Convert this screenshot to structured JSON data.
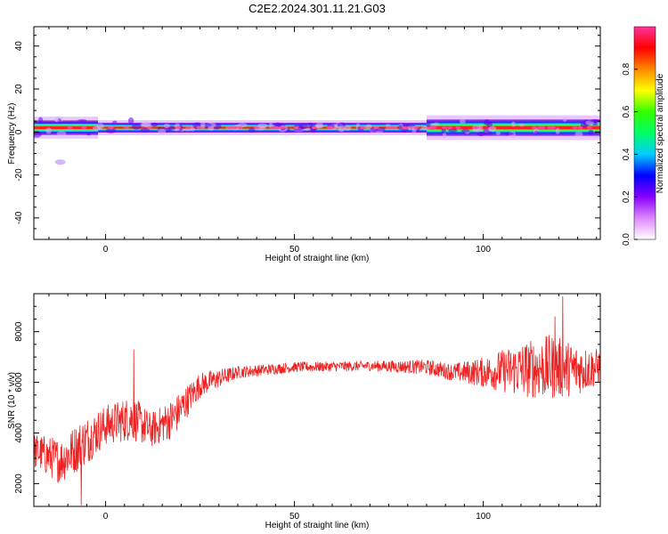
{
  "title": "C2E2.2024.301.11.21.G03",
  "chart_data": [
    {
      "type": "heatmap",
      "xlabel": "Height of straight line (km)",
      "ylabel": "Frequency (Hz)",
      "xlim": [
        -19,
        131
      ],
      "ylim": [
        -50,
        49
      ],
      "xticks": [
        0,
        50,
        100
      ],
      "yticks": [
        -40,
        -20,
        0,
        20,
        40
      ],
      "colorbar": {
        "label": "Normalized spectral amplitude",
        "ticks": [
          "0.0",
          "0.2",
          "0.4",
          "0.6",
          "0.8"
        ],
        "range": [
          0,
          1
        ],
        "colors": [
          "#ffffff",
          "#dd88ff",
          "#8800ff",
          "#0000ff",
          "#00ccff",
          "#00ff66",
          "#33ff00",
          "#ffff00",
          "#ff8800",
          "#ff0000",
          "#ff3399"
        ]
      },
      "band": {
        "center_freq_hz": 2,
        "segments": [
          {
            "x0": -19,
            "x1": -2,
            "halfwidth_hz": 1.6
          },
          {
            "x0": -2,
            "x1": 85,
            "halfwidth_hz": 1.1
          },
          {
            "x0": 85,
            "x1": 131,
            "halfwidth_hz": 1.8
          }
        ],
        "spot": {
          "x": -12,
          "y": -14
        }
      }
    },
    {
      "type": "line",
      "xlabel": "Height of straight line (km)",
      "ylabel": "SNR (10 * v/v)",
      "xlim": [
        -19,
        131
      ],
      "ylim": [
        1100,
        9500
      ],
      "xticks": [
        0,
        50,
        100
      ],
      "yticks": [
        2000,
        4000,
        6000,
        8000
      ],
      "color": "#ee2222",
      "trend": [
        {
          "x": -19,
          "y": 3300,
          "jitter": 700
        },
        {
          "x": -12,
          "y": 2900,
          "jitter": 900
        },
        {
          "x": -6,
          "y": 3600,
          "jitter": 1000
        },
        {
          "x": 0,
          "y": 4300,
          "jitter": 800
        },
        {
          "x": 7,
          "y": 4600,
          "jitter": 900
        },
        {
          "x": 12,
          "y": 4100,
          "jitter": 700
        },
        {
          "x": 18,
          "y": 4600,
          "jitter": 800
        },
        {
          "x": 25,
          "y": 5900,
          "jitter": 500
        },
        {
          "x": 35,
          "y": 6400,
          "jitter": 250
        },
        {
          "x": 50,
          "y": 6600,
          "jitter": 200
        },
        {
          "x": 70,
          "y": 6650,
          "jitter": 200
        },
        {
          "x": 85,
          "y": 6600,
          "jitter": 300
        },
        {
          "x": 92,
          "y": 6400,
          "jitter": 350
        },
        {
          "x": 100,
          "y": 6400,
          "jitter": 600
        },
        {
          "x": 110,
          "y": 6500,
          "jitter": 1100
        },
        {
          "x": 118,
          "y": 6600,
          "jitter": 1300
        },
        {
          "x": 125,
          "y": 6500,
          "jitter": 1000
        },
        {
          "x": 131,
          "y": 6600,
          "jitter": 700
        }
      ],
      "peaks": [
        {
          "x": 7.5,
          "y": 7300
        },
        {
          "x": 119,
          "y": 8600
        },
        {
          "x": 121,
          "y": 9400
        },
        {
          "x": -6.5,
          "y": 1150
        }
      ]
    }
  ]
}
